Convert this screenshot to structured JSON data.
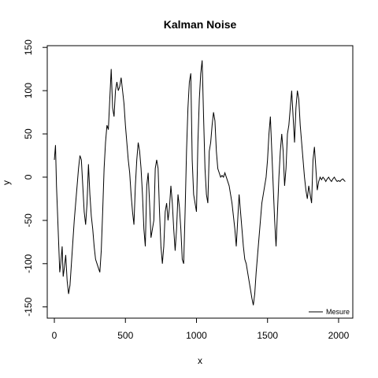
{
  "chart_data": {
    "type": "line",
    "title": "Kalman Noise",
    "xlabel": "x",
    "ylabel": "y",
    "xlim": [
      -50,
      2100
    ],
    "ylim": [
      -163,
      152
    ],
    "x_ticks": [
      0,
      500,
      1000,
      1500,
      2000
    ],
    "y_ticks": [
      -150,
      -100,
      -50,
      0,
      50,
      100,
      150
    ],
    "grid": false,
    "legend_position": "bottom-right",
    "series": [
      {
        "name": "Mesure",
        "color": "#000000",
        "points": [
          [
            0,
            20
          ],
          [
            8,
            37
          ],
          [
            15,
            -10
          ],
          [
            22,
            -40
          ],
          [
            30,
            -75
          ],
          [
            38,
            -110
          ],
          [
            45,
            -100
          ],
          [
            55,
            -80
          ],
          [
            62,
            -115
          ],
          [
            70,
            -105
          ],
          [
            80,
            -90
          ],
          [
            90,
            -120
          ],
          [
            100,
            -135
          ],
          [
            110,
            -125
          ],
          [
            120,
            -100
          ],
          [
            130,
            -75
          ],
          [
            140,
            -50
          ],
          [
            150,
            -30
          ],
          [
            160,
            -10
          ],
          [
            170,
            10
          ],
          [
            180,
            25
          ],
          [
            190,
            20
          ],
          [
            200,
            -10
          ],
          [
            210,
            -40
          ],
          [
            220,
            -55
          ],
          [
            230,
            -30
          ],
          [
            240,
            15
          ],
          [
            250,
            -20
          ],
          [
            260,
            -45
          ],
          [
            270,
            -60
          ],
          [
            280,
            -80
          ],
          [
            290,
            -95
          ],
          [
            300,
            -100
          ],
          [
            310,
            -105
          ],
          [
            320,
            -110
          ],
          [
            330,
            -85
          ],
          [
            340,
            -40
          ],
          [
            350,
            10
          ],
          [
            360,
            40
          ],
          [
            370,
            60
          ],
          [
            380,
            55
          ],
          [
            390,
            90
          ],
          [
            400,
            125
          ],
          [
            410,
            80
          ],
          [
            420,
            70
          ],
          [
            430,
            100
          ],
          [
            440,
            110
          ],
          [
            450,
            100
          ],
          [
            460,
            105
          ],
          [
            470,
            115
          ],
          [
            480,
            100
          ],
          [
            490,
            85
          ],
          [
            500,
            60
          ],
          [
            510,
            40
          ],
          [
            520,
            20
          ],
          [
            530,
            5
          ],
          [
            540,
            -20
          ],
          [
            550,
            -40
          ],
          [
            560,
            -55
          ],
          [
            570,
            -10
          ],
          [
            580,
            20
          ],
          [
            590,
            40
          ],
          [
            600,
            30
          ],
          [
            610,
            10
          ],
          [
            620,
            -20
          ],
          [
            630,
            -60
          ],
          [
            640,
            -80
          ],
          [
            650,
            -10
          ],
          [
            660,
            5
          ],
          [
            670,
            -30
          ],
          [
            680,
            -70
          ],
          [
            690,
            -60
          ],
          [
            700,
            -50
          ],
          [
            710,
            10
          ],
          [
            720,
            20
          ],
          [
            730,
            10
          ],
          [
            740,
            -40
          ],
          [
            750,
            -80
          ],
          [
            760,
            -100
          ],
          [
            770,
            -80
          ],
          [
            780,
            -40
          ],
          [
            790,
            -30
          ],
          [
            800,
            -50
          ],
          [
            810,
            -35
          ],
          [
            820,
            -10
          ],
          [
            830,
            -30
          ],
          [
            840,
            -60
          ],
          [
            850,
            -85
          ],
          [
            860,
            -60
          ],
          [
            870,
            -20
          ],
          [
            880,
            -35
          ],
          [
            890,
            -60
          ],
          [
            900,
            -95
          ],
          [
            910,
            -100
          ],
          [
            920,
            -40
          ],
          [
            930,
            30
          ],
          [
            940,
            80
          ],
          [
            950,
            110
          ],
          [
            960,
            120
          ],
          [
            970,
            20
          ],
          [
            980,
            -20
          ],
          [
            990,
            -30
          ],
          [
            1000,
            -40
          ],
          [
            1010,
            40
          ],
          [
            1020,
            90
          ],
          [
            1030,
            120
          ],
          [
            1040,
            135
          ],
          [
            1050,
            70
          ],
          [
            1060,
            10
          ],
          [
            1070,
            -20
          ],
          [
            1080,
            -30
          ],
          [
            1090,
            30
          ],
          [
            1100,
            40
          ],
          [
            1110,
            60
          ],
          [
            1120,
            75
          ],
          [
            1130,
            65
          ],
          [
            1140,
            30
          ],
          [
            1150,
            10
          ],
          [
            1160,
            5
          ],
          [
            1170,
            0
          ],
          [
            1180,
            2
          ],
          [
            1190,
            0
          ],
          [
            1200,
            5
          ],
          [
            1210,
            0
          ],
          [
            1220,
            -5
          ],
          [
            1230,
            -10
          ],
          [
            1240,
            -20
          ],
          [
            1250,
            -30
          ],
          [
            1260,
            -45
          ],
          [
            1270,
            -60
          ],
          [
            1280,
            -80
          ],
          [
            1290,
            -50
          ],
          [
            1300,
            -20
          ],
          [
            1310,
            -40
          ],
          [
            1320,
            -60
          ],
          [
            1330,
            -80
          ],
          [
            1340,
            -95
          ],
          [
            1350,
            -100
          ],
          [
            1360,
            -110
          ],
          [
            1370,
            -120
          ],
          [
            1380,
            -130
          ],
          [
            1390,
            -140
          ],
          [
            1400,
            -148
          ],
          [
            1410,
            -135
          ],
          [
            1420,
            -110
          ],
          [
            1430,
            -90
          ],
          [
            1440,
            -70
          ],
          [
            1450,
            -50
          ],
          [
            1460,
            -30
          ],
          [
            1470,
            -20
          ],
          [
            1480,
            -10
          ],
          [
            1490,
            0
          ],
          [
            1500,
            20
          ],
          [
            1510,
            50
          ],
          [
            1520,
            70
          ],
          [
            1530,
            30
          ],
          [
            1540,
            -10
          ],
          [
            1550,
            -50
          ],
          [
            1560,
            -80
          ],
          [
            1570,
            -40
          ],
          [
            1580,
            0
          ],
          [
            1590,
            30
          ],
          [
            1600,
            50
          ],
          [
            1610,
            30
          ],
          [
            1620,
            -10
          ],
          [
            1630,
            10
          ],
          [
            1640,
            50
          ],
          [
            1650,
            60
          ],
          [
            1660,
            80
          ],
          [
            1670,
            100
          ],
          [
            1680,
            70
          ],
          [
            1690,
            40
          ],
          [
            1700,
            80
          ],
          [
            1710,
            100
          ],
          [
            1720,
            90
          ],
          [
            1730,
            60
          ],
          [
            1740,
            40
          ],
          [
            1750,
            20
          ],
          [
            1760,
            0
          ],
          [
            1770,
            -15
          ],
          [
            1780,
            -25
          ],
          [
            1790,
            -10
          ],
          [
            1800,
            -20
          ],
          [
            1810,
            -30
          ],
          [
            1820,
            20
          ],
          [
            1830,
            35
          ],
          [
            1840,
            10
          ],
          [
            1850,
            -15
          ],
          [
            1860,
            -5
          ],
          [
            1870,
            0
          ],
          [
            1880,
            -3
          ],
          [
            1890,
            0
          ],
          [
            1900,
            -2
          ],
          [
            1910,
            -5
          ],
          [
            1920,
            -2
          ],
          [
            1930,
            0
          ],
          [
            1940,
            -3
          ],
          [
            1950,
            -5
          ],
          [
            1960,
            -2
          ],
          [
            1970,
            0
          ],
          [
            1980,
            -3
          ],
          [
            1990,
            -5
          ],
          [
            2000,
            -4
          ],
          [
            2010,
            -5
          ],
          [
            2020,
            -3
          ],
          [
            2030,
            -2
          ],
          [
            2040,
            -4
          ],
          [
            2047,
            -5
          ]
        ]
      }
    ]
  }
}
